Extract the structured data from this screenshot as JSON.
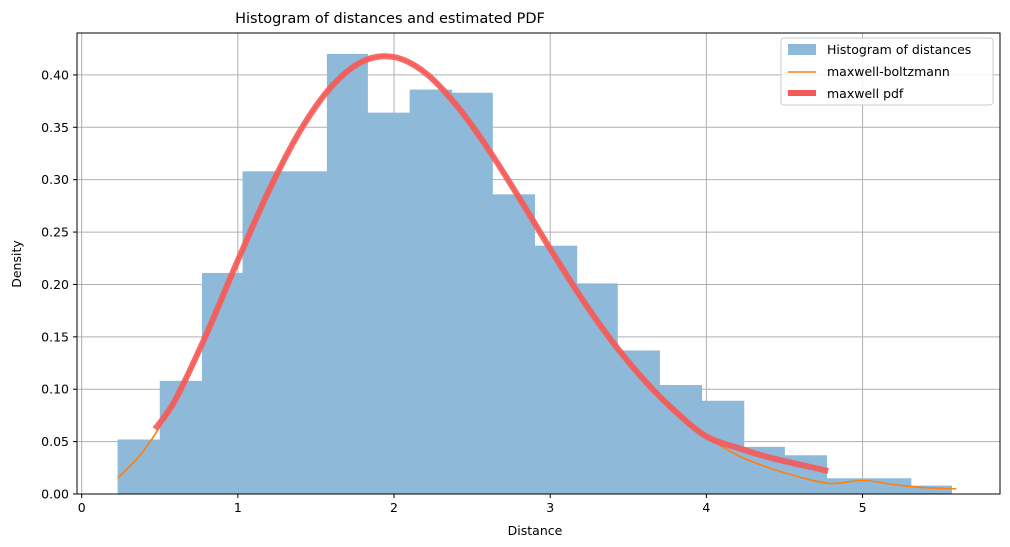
{
  "chart_data": {
    "type": "bar",
    "title": "Histogram of distances and estimated PDF",
    "xlabel": "Distance",
    "ylabel": "Density",
    "xlim": [
      -0.03,
      5.88
    ],
    "ylim": [
      0,
      0.44
    ],
    "xticks": [
      0,
      1,
      2,
      3,
      4,
      5
    ],
    "xtick_labels": [
      "0",
      "1",
      "2",
      "3",
      "4",
      "5"
    ],
    "yticks": [
      0,
      0.05,
      0.1,
      0.15,
      0.2,
      0.25,
      0.3,
      0.35,
      0.4
    ],
    "ytick_labels": [
      "0.00",
      "0.05",
      "0.10",
      "0.15",
      "0.20",
      "0.25",
      "0.30",
      "0.35",
      "0.40"
    ],
    "grid": true,
    "legend_position": "top-right",
    "colors": {
      "histogram": "#8fb9d8",
      "maxwell_boltzmann": "#ff7f0e",
      "maxwell_pdf": "#f55a5a",
      "grid": "#b0b0b0"
    },
    "histogram": {
      "name": "Histogram of distances",
      "bin_edges": [
        0.23,
        0.5,
        0.77,
        1.03,
        1.3,
        1.57,
        1.83,
        2.1,
        2.37,
        2.63,
        2.9,
        3.17,
        3.43,
        3.7,
        3.97,
        4.24,
        4.5,
        4.77,
        5.04,
        5.31,
        5.57
      ],
      "values": [
        0.052,
        0.108,
        0.211,
        0.308,
        0.308,
        0.42,
        0.364,
        0.386,
        0.383,
        0.286,
        0.237,
        0.201,
        0.137,
        0.104,
        0.089,
        0.045,
        0.037,
        0.015,
        0.015,
        0.008
      ]
    },
    "series": [
      {
        "name": "maxwell-boltzmann",
        "x": [
          0.23,
          0.4,
          0.6,
          0.8,
          1.0,
          1.2,
          1.4,
          1.6,
          1.8,
          2.0,
          2.2,
          2.4,
          2.6,
          2.8,
          3.0,
          3.2,
          3.4,
          3.6,
          3.8,
          4.0,
          4.2,
          4.4,
          4.6,
          4.8,
          5.0,
          5.2,
          5.4,
          5.6
        ],
        "values": [
          0.015,
          0.042,
          0.09,
          0.153,
          0.223,
          0.29,
          0.347,
          0.389,
          0.413,
          0.417,
          0.402,
          0.371,
          0.33,
          0.283,
          0.234,
          0.187,
          0.145,
          0.109,
          0.079,
          0.055,
          0.037,
          0.025,
          0.016,
          0.01,
          0.013,
          0.009,
          0.006,
          0.005
        ]
      },
      {
        "name": "maxwell pdf",
        "x": [
          0.47,
          0.6,
          0.8,
          1.0,
          1.2,
          1.4,
          1.6,
          1.8,
          2.0,
          2.2,
          2.4,
          2.6,
          2.8,
          3.0,
          3.2,
          3.4,
          3.6,
          3.8,
          4.0,
          4.2,
          4.4,
          4.6,
          4.78
        ],
        "values": [
          0.062,
          0.09,
          0.153,
          0.223,
          0.29,
          0.347,
          0.389,
          0.413,
          0.417,
          0.402,
          0.371,
          0.33,
          0.283,
          0.234,
          0.187,
          0.145,
          0.109,
          0.079,
          0.055,
          0.044,
          0.035,
          0.028,
          0.022
        ]
      }
    ]
  }
}
